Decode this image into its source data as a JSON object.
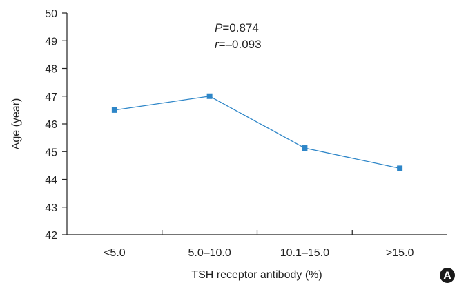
{
  "chart_data": {
    "type": "line",
    "categories": [
      "<5.0",
      "5.0–10.0",
      "10.1–15.0",
      ">15.0"
    ],
    "series": [
      {
        "values": [
          46.5,
          47.0,
          45.13,
          44.4
        ],
        "color": "#2e86c8",
        "marker": "square"
      }
    ],
    "xlabel": "TSH receptor antibody (%)",
    "ylabel": "Age (year)",
    "ylim": [
      42,
      50
    ],
    "yticks": [
      42,
      43,
      44,
      45,
      46,
      47,
      48,
      49,
      50
    ],
    "grid": false,
    "annotations": {
      "p_label": "P",
      "p_value": "=0.874",
      "r_label": "r",
      "r_value": "=–0.093"
    },
    "panel_label": "A",
    "panel_color": "#1a1a1a"
  }
}
